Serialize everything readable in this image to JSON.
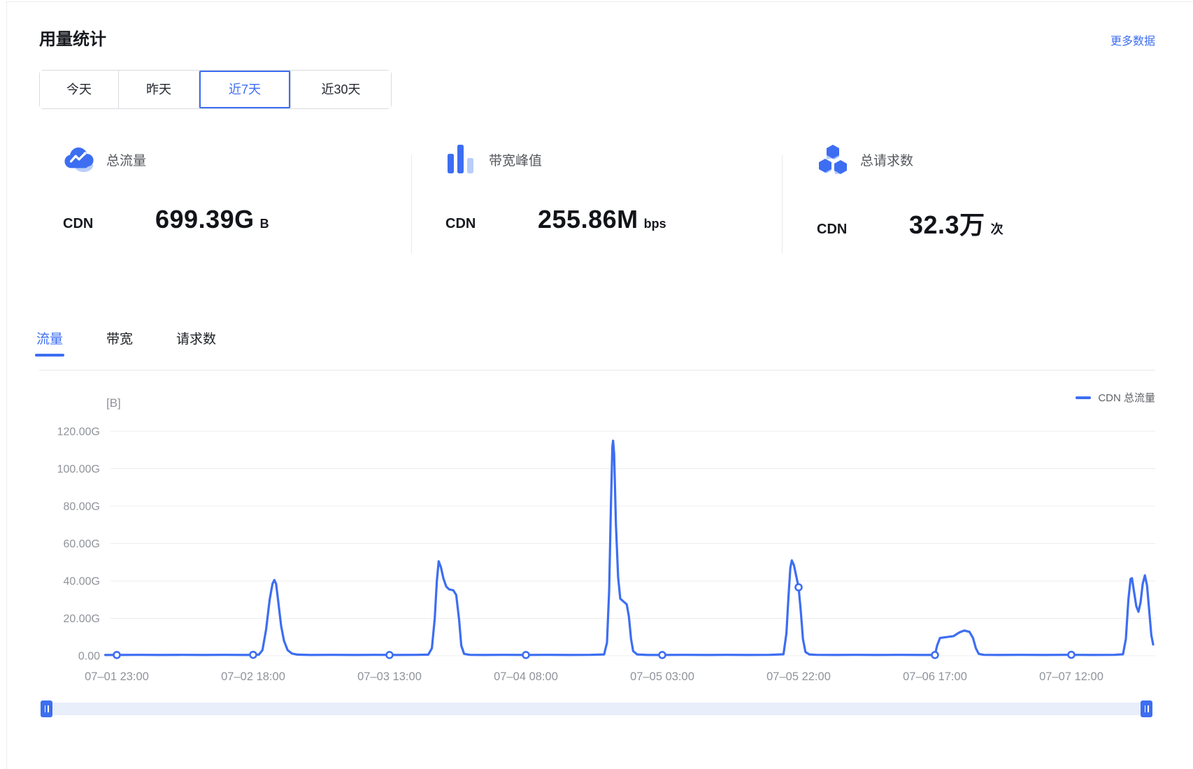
{
  "theme": {
    "accent": "#3d6ef2",
    "accent_light": "#b9cdf9",
    "grid_color": "#ececec",
    "axis_label_color": "#8f939a"
  },
  "header": {
    "title": "用量统计",
    "more_label": "更多数据"
  },
  "range_tabs": [
    {
      "label": "今天",
      "active": false
    },
    {
      "label": "昨天",
      "active": false
    },
    {
      "label": "近7天",
      "active": true
    },
    {
      "label": "近30天",
      "active": false
    }
  ],
  "stats": [
    {
      "icon": "cloud-traffic-icon",
      "label": "总流量",
      "product": "CDN",
      "value": "699.39G",
      "unit": "B"
    },
    {
      "icon": "bandwidth-bars-icon",
      "label": "带宽峰值",
      "product": "CDN",
      "value": "255.86M",
      "unit": "bps"
    },
    {
      "icon": "requests-cubes-icon",
      "label": "总请求数",
      "product": "CDN",
      "value": "32.3万",
      "unit": "次"
    }
  ],
  "chart_tabs": [
    {
      "label": "流量",
      "active": true
    },
    {
      "label": "带宽",
      "active": false
    },
    {
      "label": "请求数",
      "active": false
    }
  ],
  "legend": {
    "label": "CDN 总流量"
  },
  "chart_data": {
    "type": "line",
    "title": "",
    "unit_label": "[B]",
    "xlabel": "",
    "ylabel": "",
    "ylim": [
      0,
      130
    ],
    "grid": true,
    "legend_position": "top-right",
    "y_ticks": [
      {
        "v": 0,
        "label": "0.00"
      },
      {
        "v": 20,
        "label": "20.00G"
      },
      {
        "v": 40,
        "label": "40.00G"
      },
      {
        "v": 60,
        "label": "60.00G"
      },
      {
        "v": 80,
        "label": "80.00G"
      },
      {
        "v": 100,
        "label": "100.00G"
      },
      {
        "v": 120,
        "label": "120.00G"
      }
    ],
    "x_ticks": [
      {
        "t": 0,
        "label": "07–01 23:00"
      },
      {
        "t": 19,
        "label": "07–02 18:00"
      },
      {
        "t": 38,
        "label": "07–03 13:00"
      },
      {
        "t": 57,
        "label": "07–04 08:00"
      },
      {
        "t": 76,
        "label": "07–05 03:00"
      },
      {
        "t": 95,
        "label": "07–05 22:00"
      },
      {
        "t": 114,
        "label": "07–06 17:00"
      },
      {
        "t": 133,
        "label": "07–07 12:00"
      }
    ],
    "series": [
      {
        "name": "CDN 总流量",
        "color": "#3d6ef2",
        "points": [
          [
            -1.6,
            0.4
          ],
          [
            0,
            0.4
          ],
          [
            3,
            0.5
          ],
          [
            6,
            0.4
          ],
          [
            9,
            0.5
          ],
          [
            12,
            0.4
          ],
          [
            15,
            0.5
          ],
          [
            18,
            0.4
          ],
          [
            19,
            0.5
          ],
          [
            19.8,
            0.6
          ],
          [
            20.3,
            3
          ],
          [
            20.8,
            14
          ],
          [
            21.3,
            30
          ],
          [
            21.7,
            38.5
          ],
          [
            21.95,
            40.5
          ],
          [
            22.2,
            38.5
          ],
          [
            22.5,
            29
          ],
          [
            22.9,
            16
          ],
          [
            23.3,
            8
          ],
          [
            23.8,
            3
          ],
          [
            24.4,
            1.2
          ],
          [
            25.2,
            0.6
          ],
          [
            27,
            0.4
          ],
          [
            30,
            0.5
          ],
          [
            33,
            0.4
          ],
          [
            36,
            0.5
          ],
          [
            39,
            0.4
          ],
          [
            42,
            0.5
          ],
          [
            43.4,
            0.6
          ],
          [
            43.9,
            4
          ],
          [
            44.3,
            20
          ],
          [
            44.6,
            40
          ],
          [
            44.85,
            50.5
          ],
          [
            45.15,
            47.5
          ],
          [
            45.5,
            41.5
          ],
          [
            45.9,
            37
          ],
          [
            46.3,
            35.5
          ],
          [
            46.9,
            35
          ],
          [
            47.3,
            32.5
          ],
          [
            47.7,
            19
          ],
          [
            48,
            5.5
          ],
          [
            48.4,
            1
          ],
          [
            49.2,
            0.5
          ],
          [
            51,
            0.4
          ],
          [
            54,
            0.5
          ],
          [
            57,
            0.4
          ],
          [
            60,
            0.5
          ],
          [
            63,
            0.4
          ],
          [
            66,
            0.5
          ],
          [
            67.9,
            0.7
          ],
          [
            68.3,
            7
          ],
          [
            68.6,
            35
          ],
          [
            68.85,
            80
          ],
          [
            69.05,
            112
          ],
          [
            69.15,
            115
          ],
          [
            69.3,
            108
          ],
          [
            69.55,
            70
          ],
          [
            69.85,
            42
          ],
          [
            70.15,
            30.5
          ],
          [
            70.6,
            29
          ],
          [
            71.05,
            27.5
          ],
          [
            71.35,
            21
          ],
          [
            71.65,
            9
          ],
          [
            71.95,
            2.5
          ],
          [
            72.5,
            0.7
          ],
          [
            74,
            0.4
          ],
          [
            76,
            0.4
          ],
          [
            79,
            0.5
          ],
          [
            82,
            0.4
          ],
          [
            85,
            0.5
          ],
          [
            88,
            0.4
          ],
          [
            91,
            0.5
          ],
          [
            92.9,
            0.8
          ],
          [
            93.3,
            12
          ],
          [
            93.6,
            32
          ],
          [
            93.85,
            47
          ],
          [
            94.05,
            51
          ],
          [
            94.35,
            48.5
          ],
          [
            94.65,
            43
          ],
          [
            95,
            36.6
          ],
          [
            95.3,
            24
          ],
          [
            95.6,
            9
          ],
          [
            95.95,
            2
          ],
          [
            96.5,
            0.7
          ],
          [
            97.5,
            0.5
          ],
          [
            100,
            0.4
          ],
          [
            103,
            0.5
          ],
          [
            106,
            0.4
          ],
          [
            109,
            0.5
          ],
          [
            112,
            0.4
          ],
          [
            114,
            0.4
          ],
          [
            114.3,
            5.5
          ],
          [
            114.7,
            9.5
          ],
          [
            115.6,
            10
          ],
          [
            116.6,
            10.5
          ],
          [
            117.4,
            12.5
          ],
          [
            118.1,
            13.5
          ],
          [
            118.8,
            12.8
          ],
          [
            119.3,
            9.5
          ],
          [
            119.7,
            4
          ],
          [
            120.1,
            1
          ],
          [
            120.8,
            0.5
          ],
          [
            123,
            0.4
          ],
          [
            126,
            0.5
          ],
          [
            129,
            0.4
          ],
          [
            132,
            0.5
          ],
          [
            133,
            0.5
          ],
          [
            136,
            0.4
          ],
          [
            139,
            0.5
          ],
          [
            140.2,
            0.8
          ],
          [
            140.6,
            9
          ],
          [
            140.95,
            30
          ],
          [
            141.25,
            41
          ],
          [
            141.45,
            41.5
          ],
          [
            141.75,
            34
          ],
          [
            142.05,
            26.5
          ],
          [
            142.35,
            23.5
          ],
          [
            142.65,
            28.5
          ],
          [
            142.95,
            38.5
          ],
          [
            143.25,
            43
          ],
          [
            143.55,
            37.5
          ],
          [
            143.85,
            24
          ],
          [
            144.15,
            11
          ],
          [
            144.4,
            6
          ]
        ],
        "tick_markers": [
          [
            0,
            0.4
          ],
          [
            19,
            0.5
          ],
          [
            38,
            0.4
          ],
          [
            57,
            0.4
          ],
          [
            76,
            0.4
          ],
          [
            95,
            36.6
          ],
          [
            114,
            0.4
          ],
          [
            133,
            0.5
          ]
        ]
      }
    ]
  }
}
